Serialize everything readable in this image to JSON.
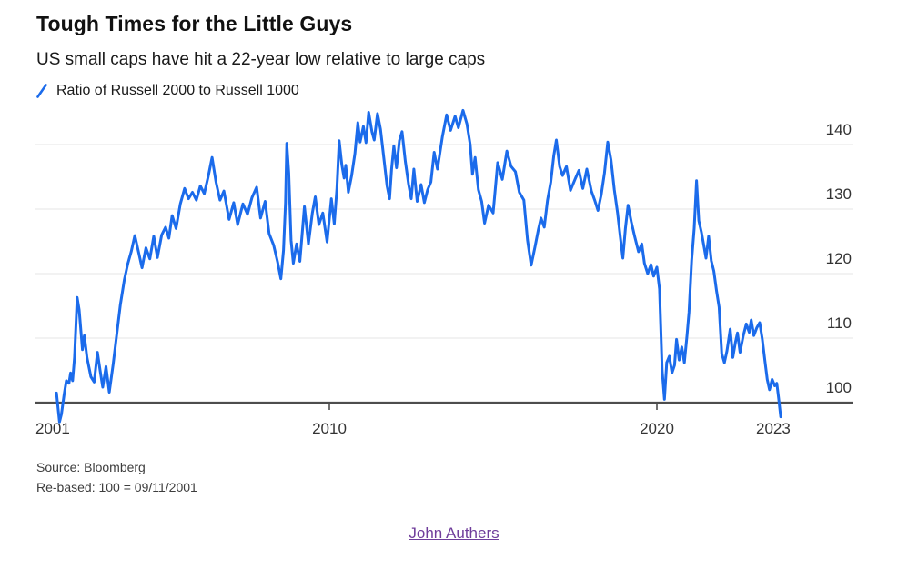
{
  "chart_data": {
    "type": "line",
    "title": "Tough Times for the Little Guys",
    "subtitle": "US small caps have hit a 22-year low relative to large caps",
    "legend": [
      {
        "label": "Ratio of Russell 2000 to Russell 1000",
        "color": "#1b6beb"
      }
    ],
    "legend_position": "top-left",
    "y_axis_side": "right",
    "grid": "horizontal",
    "xlim": [
      2001,
      2023.9
    ],
    "ylim": [
      96,
      146
    ],
    "baseline_value": 100,
    "y_ticks": [
      140,
      130,
      120,
      110,
      100
    ],
    "x_ticks": [
      {
        "label": "2001",
        "year": 2001,
        "anchor": "start",
        "tick": false
      },
      {
        "label": "2010",
        "year": 2010,
        "anchor": "middle",
        "tick": true
      },
      {
        "label": "2020",
        "year": 2020,
        "anchor": "middle",
        "tick": true
      },
      {
        "label": "2023",
        "year": 2023,
        "anchor": "start",
        "tick": false
      }
    ],
    "series": [
      {
        "name": "Ratio of Russell 2000 to Russell 1000",
        "color": "#1b6beb",
        "points": [
          [
            2001.67,
            101.5
          ],
          [
            2001.72,
            99.0
          ],
          [
            2001.76,
            97.0
          ],
          [
            2001.82,
            98.2
          ],
          [
            2001.9,
            101.2
          ],
          [
            2001.97,
            103.4
          ],
          [
            2002.05,
            103.0
          ],
          [
            2002.1,
            104.6
          ],
          [
            2002.16,
            103.4
          ],
          [
            2002.22,
            107.0
          ],
          [
            2002.3,
            116.3
          ],
          [
            2002.36,
            114.4
          ],
          [
            2002.4,
            112.0
          ],
          [
            2002.46,
            108.2
          ],
          [
            2002.52,
            110.4
          ],
          [
            2002.6,
            107.0
          ],
          [
            2002.72,
            104.0
          ],
          [
            2002.82,
            103.2
          ],
          [
            2002.92,
            107.8
          ],
          [
            2003.0,
            105.0
          ],
          [
            2003.08,
            102.4
          ],
          [
            2003.18,
            105.6
          ],
          [
            2003.28,
            101.6
          ],
          [
            2003.4,
            106.0
          ],
          [
            2003.5,
            110.2
          ],
          [
            2003.62,
            115.2
          ],
          [
            2003.74,
            119.0
          ],
          [
            2003.85,
            121.6
          ],
          [
            2003.95,
            123.4
          ],
          [
            2004.06,
            125.9
          ],
          [
            2004.18,
            123.2
          ],
          [
            2004.28,
            120.9
          ],
          [
            2004.4,
            124.0
          ],
          [
            2004.52,
            122.3
          ],
          [
            2004.64,
            125.8
          ],
          [
            2004.75,
            122.5
          ],
          [
            2004.88,
            126.0
          ],
          [
            2005.0,
            127.2
          ],
          [
            2005.1,
            125.5
          ],
          [
            2005.2,
            129.0
          ],
          [
            2005.32,
            127.0
          ],
          [
            2005.45,
            130.8
          ],
          [
            2005.58,
            133.2
          ],
          [
            2005.7,
            131.6
          ],
          [
            2005.82,
            132.6
          ],
          [
            2005.94,
            131.4
          ],
          [
            2006.06,
            133.6
          ],
          [
            2006.18,
            132.4
          ],
          [
            2006.3,
            135.0
          ],
          [
            2006.42,
            138.0
          ],
          [
            2006.54,
            134.2
          ],
          [
            2006.66,
            131.4
          ],
          [
            2006.78,
            132.8
          ],
          [
            2006.94,
            128.4
          ],
          [
            2007.08,
            131.0
          ],
          [
            2007.2,
            127.6
          ],
          [
            2007.36,
            130.8
          ],
          [
            2007.5,
            129.2
          ],
          [
            2007.64,
            131.8
          ],
          [
            2007.78,
            133.4
          ],
          [
            2007.9,
            128.6
          ],
          [
            2008.04,
            131.2
          ],
          [
            2008.16,
            126.2
          ],
          [
            2008.3,
            124.4
          ],
          [
            2008.42,
            121.8
          ],
          [
            2008.52,
            119.2
          ],
          [
            2008.6,
            123.6
          ],
          [
            2008.66,
            131.0
          ],
          [
            2008.7,
            140.2
          ],
          [
            2008.76,
            135.6
          ],
          [
            2008.83,
            125.2
          ],
          [
            2008.9,
            121.6
          ],
          [
            2009.0,
            124.6
          ],
          [
            2009.1,
            121.9
          ],
          [
            2009.24,
            130.4
          ],
          [
            2009.36,
            124.6
          ],
          [
            2009.48,
            129.4
          ],
          [
            2009.57,
            131.9
          ],
          [
            2009.68,
            127.6
          ],
          [
            2009.8,
            129.4
          ],
          [
            2009.93,
            124.9
          ],
          [
            2010.06,
            131.6
          ],
          [
            2010.15,
            127.7
          ],
          [
            2010.23,
            133.2
          ],
          [
            2010.3,
            140.6
          ],
          [
            2010.38,
            136.9
          ],
          [
            2010.45,
            134.8
          ],
          [
            2010.5,
            136.8
          ],
          [
            2010.58,
            132.6
          ],
          [
            2010.68,
            135.2
          ],
          [
            2010.78,
            138.6
          ],
          [
            2010.87,
            143.4
          ],
          [
            2010.94,
            140.4
          ],
          [
            2011.04,
            142.8
          ],
          [
            2011.12,
            140.3
          ],
          [
            2011.2,
            145.0
          ],
          [
            2011.3,
            142.0
          ],
          [
            2011.37,
            140.7
          ],
          [
            2011.47,
            144.8
          ],
          [
            2011.56,
            142.4
          ],
          [
            2011.66,
            138.0
          ],
          [
            2011.76,
            133.6
          ],
          [
            2011.84,
            131.6
          ],
          [
            2011.9,
            136.2
          ],
          [
            2011.97,
            139.8
          ],
          [
            2012.05,
            136.4
          ],
          [
            2012.14,
            140.6
          ],
          [
            2012.22,
            142.0
          ],
          [
            2012.32,
            137.4
          ],
          [
            2012.42,
            133.8
          ],
          [
            2012.5,
            131.6
          ],
          [
            2012.58,
            136.2
          ],
          [
            2012.68,
            131.2
          ],
          [
            2012.8,
            133.8
          ],
          [
            2012.9,
            131.0
          ],
          [
            2013.0,
            133.0
          ],
          [
            2013.1,
            134.2
          ],
          [
            2013.2,
            138.8
          ],
          [
            2013.3,
            136.2
          ],
          [
            2013.45,
            141.2
          ],
          [
            2013.58,
            144.6
          ],
          [
            2013.7,
            142.2
          ],
          [
            2013.84,
            144.4
          ],
          [
            2013.94,
            142.6
          ],
          [
            2014.08,
            145.3
          ],
          [
            2014.2,
            143.2
          ],
          [
            2014.3,
            140.0
          ],
          [
            2014.37,
            135.4
          ],
          [
            2014.45,
            138.0
          ],
          [
            2014.55,
            133.0
          ],
          [
            2014.65,
            131.2
          ],
          [
            2014.74,
            127.8
          ],
          [
            2014.86,
            130.6
          ],
          [
            2015.0,
            129.4
          ],
          [
            2015.14,
            137.2
          ],
          [
            2015.28,
            134.6
          ],
          [
            2015.42,
            139.0
          ],
          [
            2015.55,
            136.6
          ],
          [
            2015.68,
            135.8
          ],
          [
            2015.8,
            132.6
          ],
          [
            2015.94,
            131.4
          ],
          [
            2016.05,
            125.2
          ],
          [
            2016.16,
            121.3
          ],
          [
            2016.28,
            124.2
          ],
          [
            2016.38,
            126.8
          ],
          [
            2016.46,
            128.6
          ],
          [
            2016.56,
            127.2
          ],
          [
            2016.66,
            131.4
          ],
          [
            2016.76,
            134.2
          ],
          [
            2016.85,
            138.2
          ],
          [
            2016.93,
            140.7
          ],
          [
            2017.03,
            136.6
          ],
          [
            2017.12,
            135.2
          ],
          [
            2017.24,
            136.6
          ],
          [
            2017.36,
            132.9
          ],
          [
            2017.5,
            134.6
          ],
          [
            2017.62,
            136.0
          ],
          [
            2017.74,
            133.2
          ],
          [
            2017.86,
            136.2
          ],
          [
            2018.0,
            132.8
          ],
          [
            2018.1,
            131.4
          ],
          [
            2018.2,
            129.8
          ],
          [
            2018.3,
            132.2
          ],
          [
            2018.4,
            135.6
          ],
          [
            2018.5,
            140.4
          ],
          [
            2018.6,
            137.6
          ],
          [
            2018.7,
            133.0
          ],
          [
            2018.8,
            129.4
          ],
          [
            2018.88,
            125.8
          ],
          [
            2018.96,
            122.4
          ],
          [
            2019.04,
            127.0
          ],
          [
            2019.12,
            130.6
          ],
          [
            2019.22,
            128.0
          ],
          [
            2019.32,
            125.8
          ],
          [
            2019.44,
            123.4
          ],
          [
            2019.54,
            124.6
          ],
          [
            2019.62,
            121.6
          ],
          [
            2019.72,
            120.0
          ],
          [
            2019.82,
            121.4
          ],
          [
            2019.9,
            119.6
          ],
          [
            2020.0,
            121.0
          ],
          [
            2020.08,
            117.6
          ],
          [
            2020.16,
            105.0
          ],
          [
            2020.23,
            100.5
          ],
          [
            2020.3,
            106.2
          ],
          [
            2020.38,
            107.2
          ],
          [
            2020.46,
            104.6
          ],
          [
            2020.54,
            105.8
          ],
          [
            2020.6,
            109.8
          ],
          [
            2020.68,
            106.6
          ],
          [
            2020.76,
            108.6
          ],
          [
            2020.84,
            106.2
          ],
          [
            2020.92,
            110.4
          ],
          [
            2020.98,
            114.0
          ],
          [
            2021.06,
            122.0
          ],
          [
            2021.14,
            127.0
          ],
          [
            2021.21,
            134.4
          ],
          [
            2021.28,
            128.2
          ],
          [
            2021.36,
            126.4
          ],
          [
            2021.44,
            124.2
          ],
          [
            2021.5,
            122.4
          ],
          [
            2021.58,
            125.8
          ],
          [
            2021.66,
            122.0
          ],
          [
            2021.74,
            120.4
          ],
          [
            2021.82,
            117.4
          ],
          [
            2021.9,
            114.8
          ],
          [
            2021.98,
            107.6
          ],
          [
            2022.06,
            106.2
          ],
          [
            2022.14,
            108.0
          ],
          [
            2022.24,
            111.4
          ],
          [
            2022.32,
            107.0
          ],
          [
            2022.4,
            109.4
          ],
          [
            2022.46,
            110.8
          ],
          [
            2022.54,
            107.8
          ],
          [
            2022.64,
            110.4
          ],
          [
            2022.73,
            112.2
          ],
          [
            2022.82,
            110.9
          ],
          [
            2022.88,
            112.8
          ],
          [
            2022.96,
            110.4
          ],
          [
            2023.05,
            111.6
          ],
          [
            2023.14,
            112.4
          ],
          [
            2023.22,
            109.8
          ],
          [
            2023.3,
            106.4
          ],
          [
            2023.37,
            103.6
          ],
          [
            2023.44,
            102.0
          ],
          [
            2023.52,
            103.6
          ],
          [
            2023.6,
            102.6
          ],
          [
            2023.66,
            103.0
          ],
          [
            2023.72,
            100.6
          ],
          [
            2023.78,
            97.8
          ]
        ]
      }
    ]
  },
  "footer": {
    "source": "Source: Bloomberg",
    "rebased": "Re-based: 100 = 09/11/2001",
    "author_link": "John Authers"
  },
  "colors": {
    "line_blue": "#1b6beb",
    "link_purple": "#6f3d9b",
    "axis_dark": "#4d4d4d",
    "grid_light": "#e9e9e9",
    "label_gray": "#333333"
  }
}
